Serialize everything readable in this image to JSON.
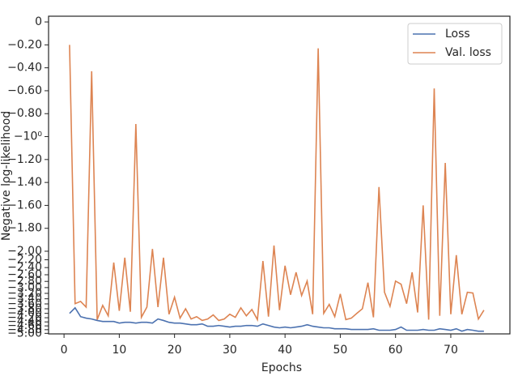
{
  "chart_data": {
    "type": "line",
    "x_label": "Epochs",
    "y_label": "Negative log-likelihood",
    "x": [
      1,
      2,
      3,
      4,
      5,
      6,
      7,
      8,
      9,
      10,
      11,
      12,
      13,
      14,
      15,
      16,
      17,
      18,
      19,
      20,
      21,
      22,
      23,
      24,
      25,
      26,
      27,
      28,
      29,
      30,
      31,
      32,
      33,
      34,
      35,
      36,
      37,
      38,
      39,
      40,
      41,
      42,
      43,
      44,
      45,
      46,
      47,
      48,
      49,
      50,
      51,
      52,
      53,
      54,
      55,
      56,
      57,
      58,
      59,
      60,
      61,
      62,
      63,
      64,
      65,
      66,
      67,
      68,
      69,
      70,
      71,
      72,
      73,
      74,
      75,
      76
    ],
    "series": [
      {
        "name": "Loss",
        "color": "#4c72b0",
        "values": [
          -4.0,
          -3.76,
          -4.15,
          -4.22,
          -4.26,
          -4.33,
          -4.38,
          -4.38,
          -4.38,
          -4.46,
          -4.42,
          -4.42,
          -4.46,
          -4.42,
          -4.42,
          -4.46,
          -4.26,
          -4.33,
          -4.42,
          -4.46,
          -4.46,
          -4.5,
          -4.54,
          -4.54,
          -4.5,
          -4.62,
          -4.62,
          -4.58,
          -4.62,
          -4.66,
          -4.62,
          -4.62,
          -4.58,
          -4.58,
          -4.62,
          -4.5,
          -4.58,
          -4.66,
          -4.7,
          -4.66,
          -4.7,
          -4.66,
          -4.62,
          -4.54,
          -4.62,
          -4.66,
          -4.7,
          -4.7,
          -4.75,
          -4.75,
          -4.75,
          -4.79,
          -4.79,
          -4.79,
          -4.79,
          -4.75,
          -4.83,
          -4.83,
          -4.83,
          -4.79,
          -4.66,
          -4.83,
          -4.83,
          -4.83,
          -4.79,
          -4.83,
          -4.83,
          -4.75,
          -4.79,
          -4.83,
          -4.75,
          -4.88,
          -4.79,
          -4.83,
          -4.88,
          -4.88
        ]
      },
      {
        "name": "Val. loss",
        "color": "#dd8452",
        "values": [
          -0.2,
          -3.59,
          -3.5,
          -3.73,
          -0.43,
          -4.29,
          -3.66,
          -4.11,
          -2.27,
          -3.89,
          -2.15,
          -3.93,
          -0.89,
          -4.18,
          -3.73,
          -1.98,
          -3.73,
          -2.15,
          -4.04,
          -3.34,
          -4.22,
          -3.8,
          -4.26,
          -4.15,
          -4.33,
          -4.26,
          -4.07,
          -4.33,
          -4.26,
          -4.04,
          -4.18,
          -3.76,
          -4.11,
          -3.83,
          -4.29,
          -2.23,
          -4.15,
          -1.95,
          -3.86,
          -2.35,
          -3.25,
          -2.53,
          -3.28,
          -2.79,
          -4.04,
          -0.23,
          -4.0,
          -3.62,
          -4.15,
          -3.22,
          -4.29,
          -4.22,
          -4.0,
          -3.8,
          -2.84,
          -4.18,
          -1.44,
          -3.16,
          -3.7,
          -2.79,
          -2.89,
          -3.59,
          -2.53,
          -3.96,
          -1.6,
          -4.29,
          -0.58,
          -4.11,
          -1.23,
          -4.04,
          -2.09,
          -4.04,
          -3.16,
          -3.19,
          -4.26,
          -3.86
        ]
      }
    ],
    "xlim": [
      -2.8,
      80.7
    ],
    "xticks": [
      0,
      10,
      20,
      30,
      40,
      50,
      60,
      70
    ],
    "ylim": [
      -5.03,
      0.05
    ],
    "yscale": "symlog",
    "linthresh": 2,
    "yticks": [
      0,
      {
        "value": -0.2,
        "label": "−0.20"
      },
      {
        "value": -0.4,
        "label": "−0.40"
      },
      {
        "value": -0.6,
        "label": "−0.60"
      },
      {
        "value": -0.8,
        "label": "−0.80"
      },
      {
        "value": -1,
        "label": "−10⁰"
      },
      {
        "value": -1.2,
        "label": "−1.20"
      },
      {
        "value": -1.4,
        "label": "−1.40"
      },
      {
        "value": -1.6,
        "label": "−1.60"
      },
      {
        "value": -1.8,
        "label": "−1.80"
      },
      {
        "value": -2,
        "label": "−2.00"
      },
      {
        "value": -2.2,
        "label": "−2.20"
      },
      {
        "value": -2.4,
        "label": "−2.40"
      },
      {
        "value": -2.6,
        "label": "−2.60"
      },
      {
        "value": -2.8,
        "label": "−2.80"
      },
      {
        "value": -3,
        "label": "−3.00"
      },
      {
        "value": -3.2,
        "label": "−3.20"
      },
      {
        "value": -3.4,
        "label": "−3.40"
      },
      {
        "value": -3.6,
        "label": "−3.60"
      },
      {
        "value": -3.8,
        "label": "−3.80"
      },
      {
        "value": -4,
        "label": "−4.00"
      },
      {
        "value": -4.2,
        "label": "−4.20"
      },
      {
        "value": -4.4,
        "label": "−4.40"
      },
      {
        "value": -4.6,
        "label": "−4.60"
      },
      {
        "value": -4.8,
        "label": "−4.80"
      },
      {
        "value": -5,
        "label": "−5.00"
      }
    ],
    "legend": "upper right"
  }
}
